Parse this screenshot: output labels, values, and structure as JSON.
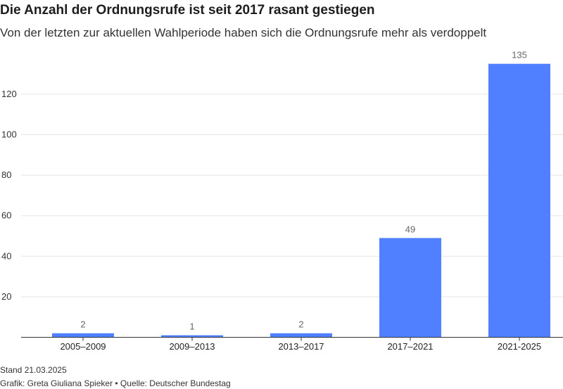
{
  "title": "Die Anzahl der Ordnungsrufe ist seit 2017 rasant gestiegen",
  "subtitle": "Von der letzten zur aktuellen Wahlperiode haben sich die Ordnungsrufe mehr als verdoppelt",
  "footer": {
    "date": "Stand 21.03.2025",
    "credit": "Grafik: Greta Giuliana Spieker • Quelle: Deutscher Bundestag"
  },
  "colors": {
    "bar": "#5080ff",
    "grid": "#e3e3e3",
    "axis": "#333333"
  },
  "chart_data": {
    "type": "bar",
    "title": "Die Anzahl der Ordnungsrufe ist seit 2017 rasant gestiegen",
    "subtitle": "Von der letzten zur aktuellen Wahlperiode haben sich die Ordnungsrufe mehr als verdoppelt",
    "xlabel": "",
    "ylabel": "",
    "categories": [
      "2005–2009",
      "2009–2013",
      "2013–2017",
      "2017–2021",
      "2021-2025"
    ],
    "values": [
      2,
      1,
      2,
      49,
      135
    ],
    "value_labels": [
      "2",
      "1",
      "2",
      "49",
      "135"
    ],
    "ylim": [
      0,
      140
    ],
    "yticks": [
      20,
      40,
      60,
      80,
      100,
      120
    ],
    "grid": true,
    "legend": "none"
  }
}
